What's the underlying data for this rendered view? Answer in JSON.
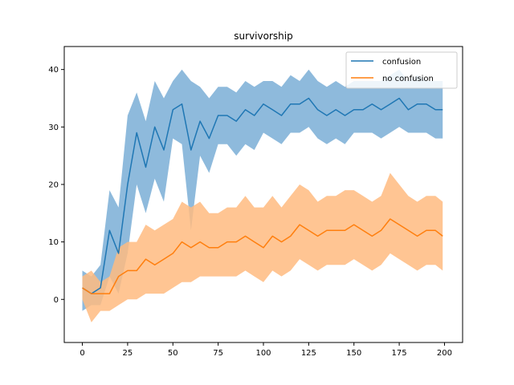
{
  "chart_data": {
    "type": "line",
    "title": "survivorship",
    "xlabel": "",
    "ylabel": "",
    "xlim": [
      -10,
      210
    ],
    "ylim": [
      -7.5,
      44
    ],
    "x_ticks": [
      0,
      25,
      50,
      75,
      100,
      125,
      150,
      175,
      200
    ],
    "y_ticks": [
      0,
      10,
      20,
      30,
      40
    ],
    "grid": false,
    "legend_position": "top-right",
    "series": [
      {
        "name": "confusion",
        "color": "#1f77b4",
        "band_color": "#7aaed6",
        "x": [
          0,
          5,
          10,
          15,
          20,
          25,
          30,
          35,
          40,
          45,
          50,
          55,
          60,
          65,
          70,
          75,
          80,
          85,
          90,
          95,
          100,
          105,
          110,
          115,
          120,
          125,
          130,
          135,
          140,
          145,
          150,
          155,
          160,
          165,
          170,
          175,
          180,
          185,
          190,
          195,
          199
        ],
        "mean": [
          2,
          1,
          2,
          12,
          8,
          20,
          29,
          23,
          30,
          26,
          33,
          34,
          26,
          31,
          28,
          32,
          32,
          31,
          33,
          32,
          34,
          33,
          32,
          34,
          34,
          35,
          33,
          32,
          33,
          32,
          33,
          33,
          34,
          33,
          34,
          35,
          33,
          34,
          34,
          33,
          33
        ],
        "lower": [
          -2,
          -1,
          -1,
          4,
          1,
          8,
          20,
          15,
          21,
          17,
          28,
          27,
          12,
          25,
          22,
          27,
          27,
          25,
          27,
          26,
          29,
          28,
          27,
          29,
          29,
          30,
          28,
          27,
          28,
          27,
          29,
          29,
          29,
          28,
          29,
          30,
          29,
          29,
          29,
          28,
          28
        ],
        "upper": [
          5,
          4,
          6,
          19,
          16,
          32,
          36,
          31,
          38,
          35,
          38,
          40,
          38,
          37,
          35,
          37,
          37,
          36,
          38,
          37,
          38,
          38,
          37,
          39,
          38,
          40,
          38,
          37,
          38,
          37,
          38,
          38,
          38,
          38,
          39,
          40,
          38,
          39,
          38,
          38,
          38
        ]
      },
      {
        "name": "no confusion",
        "color": "#ff7f0e",
        "band_color": "#ffbb80",
        "x": [
          0,
          5,
          10,
          15,
          20,
          25,
          30,
          35,
          40,
          45,
          50,
          55,
          60,
          65,
          70,
          75,
          80,
          85,
          90,
          95,
          100,
          105,
          110,
          115,
          120,
          125,
          130,
          135,
          140,
          145,
          150,
          155,
          160,
          165,
          170,
          175,
          180,
          185,
          190,
          195,
          199
        ],
        "mean": [
          2,
          1,
          1,
          1,
          4,
          5,
          5,
          7,
          6,
          7,
          8,
          10,
          9,
          10,
          9,
          9,
          10,
          10,
          11,
          10,
          9,
          11,
          10,
          11,
          13,
          12,
          11,
          12,
          12,
          12,
          13,
          12,
          11,
          12,
          14,
          13,
          12,
          11,
          12,
          12,
          11
        ],
        "lower": [
          0,
          -4,
          -2,
          -2,
          -1,
          0,
          0,
          1,
          1,
          1,
          2,
          3,
          3,
          4,
          4,
          4,
          4,
          4,
          5,
          4,
          3,
          5,
          4,
          5,
          7,
          6,
          5,
          6,
          6,
          6,
          7,
          6,
          5,
          6,
          8,
          7,
          6,
          5,
          6,
          6,
          5
        ],
        "upper": [
          4,
          5,
          3,
          4,
          9,
          10,
          10,
          13,
          12,
          13,
          14,
          17,
          16,
          17,
          15,
          15,
          16,
          16,
          18,
          16,
          16,
          18,
          16,
          18,
          20,
          19,
          17,
          18,
          18,
          19,
          19,
          18,
          17,
          18,
          22,
          20,
          18,
          17,
          18,
          18,
          17
        ]
      }
    ]
  }
}
